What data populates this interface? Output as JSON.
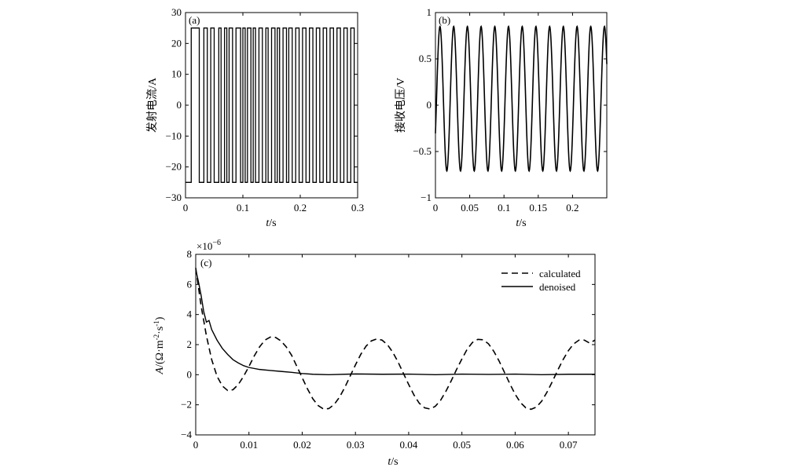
{
  "chart_data": [
    {
      "id": "a",
      "type": "line",
      "panel_label": "(a)",
      "xlabel_italic": "t",
      "xlabel_unit": "/s",
      "ylabel": "发射电流/A",
      "xlim": [
        0,
        0.3
      ],
      "ylim": [
        -30,
        30
      ],
      "xticks": [
        0,
        0.1,
        0.2,
        0.3
      ],
      "xtick_labels": [
        "0",
        "0.1",
        "0.2",
        "0.3"
      ],
      "yticks": [
        -30,
        -20,
        -10,
        0,
        10,
        20,
        30
      ],
      "ytick_labels": [
        "−30",
        "−20",
        "−10",
        "0",
        "10",
        "20",
        "30"
      ],
      "waveform": "bipolar pseudo-random square wave",
      "high_level": 25,
      "low_level": -25,
      "series": [
        {
          "line": "solid",
          "x": [
            0,
            0.01,
            0.01,
            0.024,
            0.024,
            0.032,
            0.032,
            0.038,
            0.038,
            0.044,
            0.044,
            0.05,
            0.05,
            0.058,
            0.058,
            0.062,
            0.062,
            0.068,
            0.068,
            0.072,
            0.072,
            0.076,
            0.076,
            0.082,
            0.082,
            0.088,
            0.088,
            0.096,
            0.096,
            0.1,
            0.1,
            0.104,
            0.104,
            0.108,
            0.108,
            0.114,
            0.114,
            0.118,
            0.118,
            0.122,
            0.122,
            0.128,
            0.128,
            0.134,
            0.134,
            0.14,
            0.14,
            0.144,
            0.144,
            0.15,
            0.15,
            0.156,
            0.156,
            0.16,
            0.16,
            0.164,
            0.164,
            0.17,
            0.17,
            0.176,
            0.176,
            0.18,
            0.18,
            0.186,
            0.186,
            0.192,
            0.192,
            0.198,
            0.198,
            0.204,
            0.204,
            0.21,
            0.21,
            0.216,
            0.216,
            0.222,
            0.222,
            0.228,
            0.228,
            0.234,
            0.234,
            0.24,
            0.24,
            0.246,
            0.246,
            0.252,
            0.252,
            0.258,
            0.258,
            0.264,
            0.264,
            0.27,
            0.27,
            0.276,
            0.276,
            0.282,
            0.282,
            0.288,
            0.288,
            0.294,
            0.294,
            0.3
          ],
          "y": [
            -25,
            -25,
            25,
            25,
            -25,
            -25,
            25,
            25,
            -25,
            -25,
            25,
            25,
            -25,
            -25,
            25,
            25,
            -25,
            -25,
            25,
            25,
            -25,
            -25,
            25,
            25,
            -25,
            -25,
            25,
            25,
            -25,
            -25,
            25,
            25,
            -25,
            -25,
            25,
            25,
            -25,
            -25,
            25,
            25,
            -25,
            -25,
            25,
            25,
            -25,
            -25,
            25,
            25,
            -25,
            -25,
            25,
            25,
            -25,
            -25,
            25,
            25,
            -25,
            -25,
            25,
            25,
            -25,
            -25,
            25,
            25,
            -25,
            -25,
            25,
            25,
            -25,
            -25,
            25,
            25,
            -25,
            -25,
            25,
            25,
            -25,
            -25,
            25,
            25,
            -25,
            -25,
            25,
            25,
            -25,
            -25,
            25,
            25,
            -25,
            -25,
            25,
            25,
            -25,
            -25,
            25,
            25,
            -25,
            -25,
            25,
            25,
            -25,
            -25
          ]
        }
      ]
    },
    {
      "id": "b",
      "type": "line",
      "panel_label": "(b)",
      "xlabel_italic": "t",
      "xlabel_unit": "/s",
      "ylabel": "接收电压/V",
      "xlim": [
        0,
        0.25
      ],
      "ylim": [
        -1,
        1
      ],
      "xticks": [
        0,
        0.05,
        0.1,
        0.15,
        0.2
      ],
      "xtick_labels": [
        "0",
        "0.05",
        "0.1",
        "0.15",
        "0.2"
      ],
      "yticks": [
        -1,
        -0.5,
        0,
        0.5,
        1
      ],
      "ytick_labels": [
        "−1",
        "−0.5",
        "0",
        "0.5",
        "1"
      ],
      "waveform": "oscillating sinusoid",
      "frequency_hz": 50,
      "amplitude": 0.78,
      "offset": 0.07,
      "phase_rad": -0.5,
      "series": [
        {
          "line": "solid"
        }
      ]
    },
    {
      "id": "c",
      "type": "line",
      "panel_label": "(c)",
      "xlabel_italic": "t",
      "xlabel_unit": "/s",
      "ylabel_italic": "A",
      "ylabel_unit": "/(Ω·m",
      "ylabel_unit_sup1": "-2",
      "ylabel_mid": "·s",
      "ylabel_unit_sup2": "-1",
      "ylabel_end": ")",
      "scale_base": "×10",
      "scale_exp": "−6",
      "xlim": [
        0,
        0.075
      ],
      "ylim": [
        -4,
        8
      ],
      "xticks": [
        0,
        0.01,
        0.02,
        0.03,
        0.04,
        0.05,
        0.06,
        0.07
      ],
      "xtick_labels": [
        "0",
        "0.01",
        "0.02",
        "0.03",
        "0.04",
        "0.05",
        "0.06",
        "0.07"
      ],
      "yticks": [
        -4,
        -2,
        0,
        2,
        4,
        6,
        8
      ],
      "ytick_labels": [
        "−4",
        "−2",
        "0",
        "2",
        "4",
        "6",
        "8"
      ],
      "legend_position": "top-right",
      "series": [
        {
          "name": "calculated",
          "line": "dashed",
          "x": [
            0,
            0.001,
            0.002,
            0.003,
            0.004,
            0.005,
            0.006,
            0.007,
            0.008,
            0.009,
            0.01,
            0.011,
            0.012,
            0.013,
            0.014,
            0.015,
            0.016,
            0.017,
            0.018,
            0.019,
            0.02,
            0.021,
            0.022,
            0.023,
            0.024,
            0.025,
            0.026,
            0.027,
            0.028,
            0.029,
            0.03,
            0.031,
            0.032,
            0.033,
            0.034,
            0.035,
            0.036,
            0.037,
            0.038,
            0.039,
            0.04,
            0.041,
            0.042,
            0.043,
            0.044,
            0.045,
            0.046,
            0.047,
            0.048,
            0.049,
            0.05,
            0.051,
            0.052,
            0.053,
            0.054,
            0.055,
            0.056,
            0.057,
            0.058,
            0.059,
            0.06,
            0.061,
            0.062,
            0.063,
            0.064,
            0.065,
            0.066,
            0.067,
            0.068,
            0.069,
            0.07,
            0.071,
            0.072,
            0.073,
            0.074,
            0.075
          ],
          "y": [
            7.1,
            4.6,
            2.6,
            1.0,
            -0.1,
            -0.75,
            -1.05,
            -1.0,
            -0.65,
            -0.1,
            0.55,
            1.25,
            1.85,
            2.3,
            2.5,
            2.48,
            2.25,
            1.85,
            1.3,
            0.55,
            -0.2,
            -0.95,
            -1.6,
            -2.05,
            -2.28,
            -2.25,
            -1.98,
            -1.5,
            -0.85,
            -0.1,
            0.65,
            1.35,
            1.9,
            2.25,
            2.38,
            2.3,
            2.0,
            1.5,
            0.85,
            0.1,
            -0.65,
            -1.35,
            -1.9,
            -2.2,
            -2.28,
            -2.1,
            -1.7,
            -1.1,
            -0.4,
            0.35,
            1.05,
            1.7,
            2.15,
            2.35,
            2.32,
            2.05,
            1.55,
            0.9,
            0.15,
            -0.6,
            -1.3,
            -1.85,
            -2.2,
            -2.3,
            -2.15,
            -1.75,
            -1.15,
            -0.45,
            0.3,
            1.0,
            1.6,
            2.05,
            2.3,
            2.3,
            2.1,
            2.3
          ]
        },
        {
          "name": "denoised",
          "line": "solid",
          "x": [
            0,
            0.0005,
            0.001,
            0.0015,
            0.002,
            0.0025,
            0.003,
            0.004,
            0.005,
            0.006,
            0.007,
            0.008,
            0.009,
            0.01,
            0.012,
            0.014,
            0.016,
            0.018,
            0.02,
            0.022,
            0.025,
            0.03,
            0.035,
            0.04,
            0.045,
            0.05,
            0.055,
            0.06,
            0.065,
            0.07,
            0.075
          ],
          "y": [
            7.0,
            6.2,
            5.3,
            4.2,
            3.5,
            3.6,
            3.0,
            2.3,
            1.75,
            1.35,
            1.0,
            0.78,
            0.6,
            0.48,
            0.35,
            0.28,
            0.22,
            0.16,
            0.08,
            0.03,
            0.0,
            0.05,
            0.03,
            0.04,
            0.0,
            0.04,
            0.02,
            0.04,
            0.0,
            0.03,
            0.03
          ]
        }
      ]
    }
  ]
}
